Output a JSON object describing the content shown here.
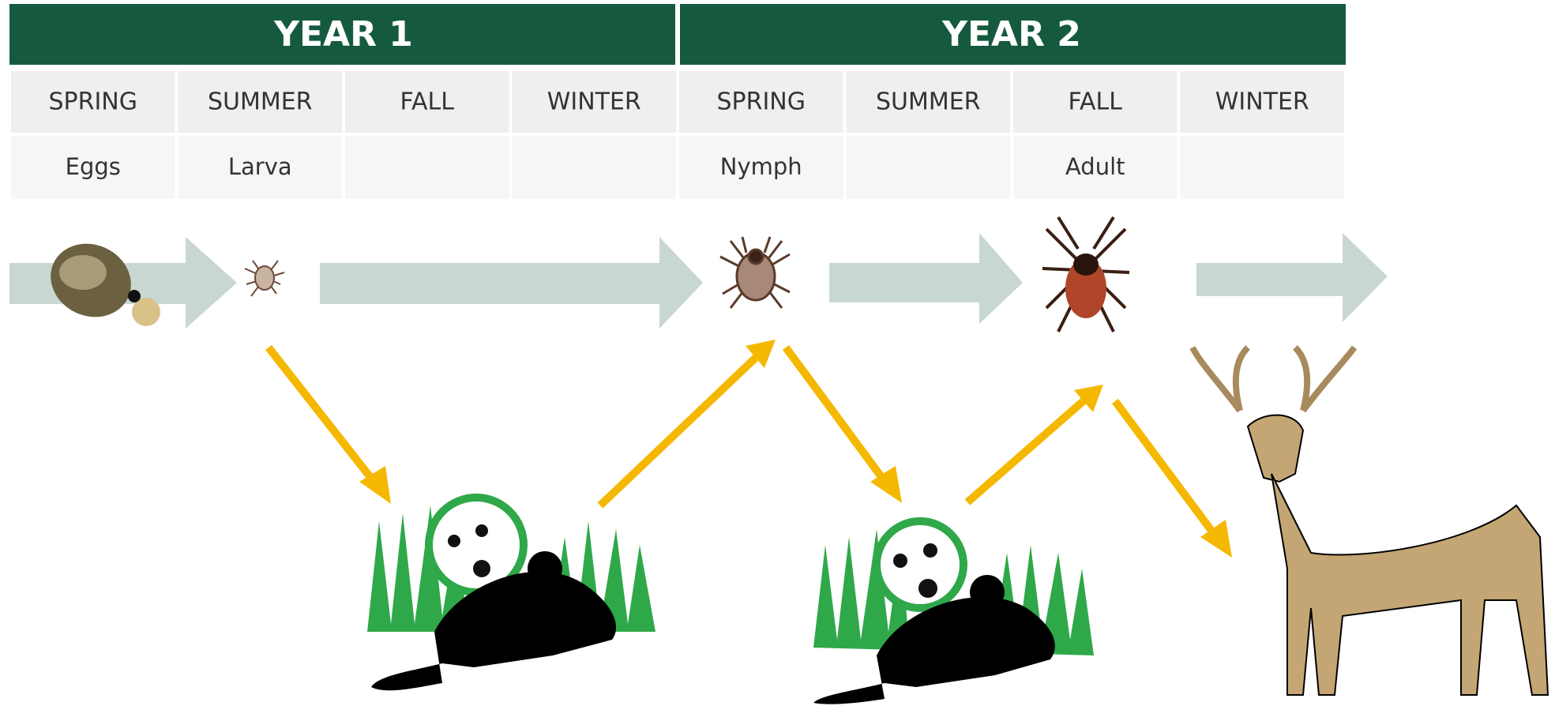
{
  "years": [
    {
      "label": "YEAR 1",
      "seasons": [
        "SPRING",
        "SUMMER",
        "FALL",
        "WINTER"
      ],
      "stages": {
        "0": "Eggs",
        "1": "Larva"
      }
    },
    {
      "label": "YEAR 2",
      "seasons": [
        "SPRING",
        "SUMMER",
        "FALL",
        "WINTER"
      ],
      "stages": {
        "0": "Nymph",
        "2": "Adult"
      }
    }
  ]
}
